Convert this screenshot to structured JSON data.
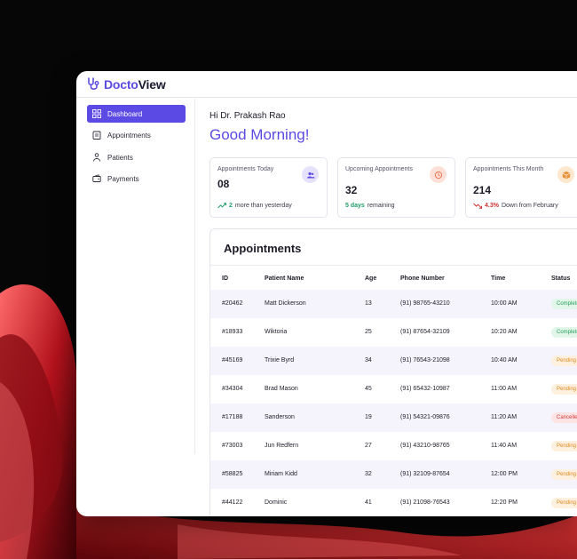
{
  "brand": {
    "part1": "Docto",
    "part2": "View"
  },
  "sidebar": {
    "items": [
      {
        "label": "Dashboard",
        "icon": "grid-icon",
        "active": true
      },
      {
        "label": "Appointments",
        "icon": "clipboard-icon",
        "active": false
      },
      {
        "label": "Patients",
        "icon": "people-icon",
        "active": false
      },
      {
        "label": "Payments",
        "icon": "wallet-icon",
        "active": false
      }
    ]
  },
  "header": {
    "greeting_line": "Hi Dr. Prakash Rao",
    "greeting": "Good Morning!"
  },
  "cards": [
    {
      "title": "Appointments Today",
      "value": "08",
      "highlight": "2",
      "note": "more than yesterday",
      "icon": "users-icon",
      "trend": "up"
    },
    {
      "title": "Upcoming Appointments",
      "value": "32",
      "highlight": "5 days",
      "note": "remaining",
      "icon": "clock-icon",
      "trend": "neutral"
    },
    {
      "title": "Appointments This Month",
      "value": "214",
      "highlight": "4.3%",
      "note": "Down from February",
      "icon": "box-icon",
      "trend": "down"
    }
  ],
  "appointments": {
    "title": "Appointments",
    "columns": [
      "ID",
      "Patient Name",
      "Age",
      "Phone Number",
      "Time",
      "Status"
    ],
    "rows": [
      {
        "id": "#20462",
        "name": "Matt Dickerson",
        "age": "13",
        "phone": "(91) 98765-43210",
        "time": "10:00 AM",
        "status": "Completed"
      },
      {
        "id": "#18933",
        "name": "Wiktoria",
        "age": "25",
        "phone": "(91) 87654-32109",
        "time": "10:20 AM",
        "status": "Completed"
      },
      {
        "id": "#45169",
        "name": "Trixie Byrd",
        "age": "34",
        "phone": "(91) 76543-21098",
        "time": "10:40 AM",
        "status": "Pending"
      },
      {
        "id": "#34304",
        "name": "Brad Mason",
        "age": "45",
        "phone": "(91) 65432-10987",
        "time": "11:00 AM",
        "status": "Pending"
      },
      {
        "id": "#17188",
        "name": "Sanderson",
        "age": "19",
        "phone": "(91) 54321-09876",
        "time": "11:20 AM",
        "status": "Cancelled"
      },
      {
        "id": "#73003",
        "name": "Jun Redfern",
        "age": "27",
        "phone": "(91) 43210-98765",
        "time": "11:40 AM",
        "status": "Pending"
      },
      {
        "id": "#58825",
        "name": "Miriam Kidd",
        "age": "32",
        "phone": "(91) 32109-87654",
        "time": "12:00 PM",
        "status": "Pending"
      },
      {
        "id": "#44122",
        "name": "Dominic",
        "age": "41",
        "phone": "(91) 21098-76543",
        "time": "12:20 PM",
        "status": "Pending"
      }
    ]
  },
  "colors": {
    "accent": "#5b4ae3",
    "completed": "#23a05a",
    "pending": "#e08a1c",
    "cancelled": "#d23a3a"
  }
}
